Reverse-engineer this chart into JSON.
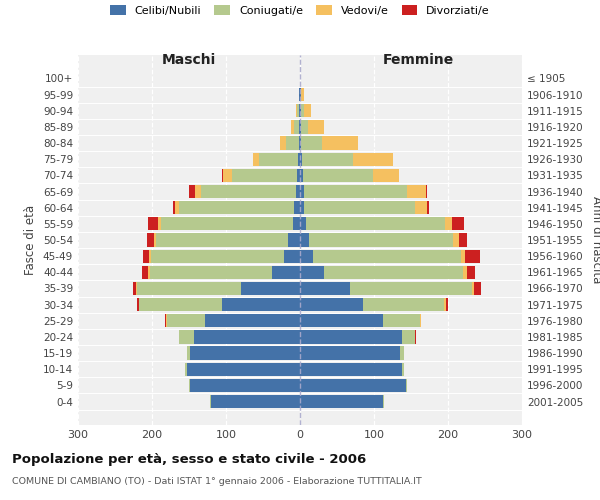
{
  "age_groups": [
    "0-4",
    "5-9",
    "10-14",
    "15-19",
    "20-24",
    "25-29",
    "30-34",
    "35-39",
    "40-44",
    "45-49",
    "50-54",
    "55-59",
    "60-64",
    "65-69",
    "70-74",
    "75-79",
    "80-84",
    "85-89",
    "90-94",
    "95-99",
    "100+"
  ],
  "birth_years": [
    "2001-2005",
    "1996-2000",
    "1991-1995",
    "1986-1990",
    "1981-1985",
    "1976-1980",
    "1971-1975",
    "1966-1970",
    "1961-1965",
    "1956-1960",
    "1951-1955",
    "1946-1950",
    "1941-1945",
    "1936-1940",
    "1931-1935",
    "1926-1930",
    "1921-1925",
    "1916-1920",
    "1911-1915",
    "1906-1910",
    "≤ 1905"
  ],
  "male": {
    "celibi": [
      120,
      148,
      153,
      148,
      143,
      128,
      105,
      80,
      38,
      22,
      16,
      10,
      8,
      6,
      4,
      3,
      1,
      1,
      1,
      1,
      0
    ],
    "coniugati": [
      1,
      2,
      3,
      5,
      20,
      52,
      112,
      140,
      165,
      180,
      178,
      178,
      155,
      128,
      88,
      52,
      18,
      7,
      3,
      1,
      0
    ],
    "vedovi": [
      0,
      0,
      0,
      0,
      0,
      1,
      1,
      1,
      2,
      2,
      3,
      4,
      6,
      8,
      12,
      8,
      8,
      4,
      1,
      0,
      0
    ],
    "divorziati": [
      0,
      0,
      0,
      0,
      1,
      2,
      2,
      5,
      8,
      8,
      10,
      13,
      2,
      8,
      1,
      0,
      0,
      0,
      0,
      0,
      0
    ]
  },
  "female": {
    "nubili": [
      112,
      143,
      138,
      135,
      138,
      112,
      85,
      68,
      32,
      18,
      12,
      8,
      6,
      5,
      4,
      3,
      2,
      1,
      1,
      1,
      0
    ],
    "coniugate": [
      1,
      2,
      3,
      5,
      18,
      50,
      110,
      165,
      188,
      200,
      195,
      188,
      150,
      140,
      95,
      68,
      28,
      10,
      4,
      1,
      0
    ],
    "vedove": [
      0,
      0,
      0,
      0,
      0,
      1,
      2,
      2,
      5,
      5,
      8,
      10,
      15,
      25,
      35,
      55,
      48,
      22,
      10,
      3,
      0
    ],
    "divorziate": [
      0,
      0,
      0,
      0,
      1,
      1,
      3,
      10,
      12,
      20,
      10,
      15,
      3,
      2,
      0,
      0,
      0,
      0,
      0,
      0,
      0
    ]
  },
  "colors": {
    "celibi": "#4472a8",
    "coniugati": "#b5c98e",
    "vedovi": "#f5c060",
    "divorziati": "#cc2020"
  },
  "title": "Popolazione per età, sesso e stato civile - 2006",
  "subtitle": "COMUNE DI CAMBIANO (TO) - Dati ISTAT 1° gennaio 2006 - Elaborazione TUTTITALIA.IT",
  "xlim": 300,
  "xlabel_left": "Maschi",
  "xlabel_right": "Femmine",
  "ylabel_left": "Fasce di età",
  "ylabel_right": "Anni di nascita",
  "legend_labels": [
    "Celibi/Nubili",
    "Coniugati/e",
    "Vedovi/e",
    "Divorziati/e"
  ],
  "bg_color": "#f0f0f0"
}
